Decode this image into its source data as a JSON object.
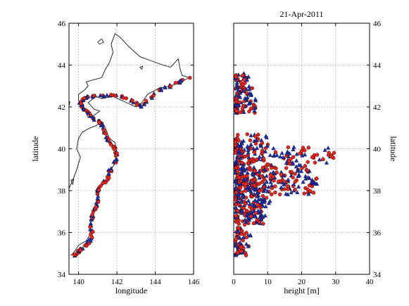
{
  "colors": {
    "red": "#e8251f",
    "blue": "#1c2ea8",
    "coast": "#111111",
    "grid": "#9a9a9a"
  },
  "chart_data": [
    {
      "type": "scatter",
      "title": "",
      "xlabel": "longitude",
      "ylabel": "latitude",
      "xlim": [
        139.5,
        146
      ],
      "ylim": [
        34,
        46
      ],
      "xticks": [
        "140",
        "142",
        "144",
        "146"
      ],
      "yticks": [
        "34",
        "36",
        "38",
        "40",
        "42",
        "44",
        "46"
      ],
      "grid": true,
      "coastline": {
        "honshu": [
          [
            139.6,
            34.9
          ],
          [
            139.8,
            35.1
          ],
          [
            140.0,
            35.4
          ],
          [
            140.4,
            35.6
          ],
          [
            140.6,
            35.9
          ],
          [
            140.6,
            36.3
          ],
          [
            140.7,
            36.8
          ],
          [
            140.9,
            37.3
          ],
          [
            141.0,
            37.7
          ],
          [
            141.0,
            38.1
          ],
          [
            141.3,
            38.3
          ],
          [
            141.5,
            38.5
          ],
          [
            141.6,
            38.9
          ],
          [
            141.9,
            39.3
          ],
          [
            142.0,
            39.8
          ],
          [
            141.9,
            40.3
          ],
          [
            141.6,
            40.5
          ],
          [
            141.4,
            41.0
          ],
          [
            141.2,
            41.3
          ],
          [
            140.9,
            41.1
          ],
          [
            140.6,
            41.0
          ],
          [
            140.2,
            40.8
          ],
          [
            140.0,
            40.5
          ],
          [
            139.9,
            40.0
          ],
          [
            140.1,
            39.6
          ],
          [
            139.9,
            39.0
          ],
          [
            139.7,
            38.5
          ],
          [
            139.5,
            38.1
          ]
        ],
        "hokkaido": [
          [
            140.5,
            41.5
          ],
          [
            140.4,
            41.7
          ],
          [
            140.2,
            42.0
          ],
          [
            140.0,
            42.3
          ],
          [
            140.0,
            42.6
          ],
          [
            140.3,
            42.8
          ],
          [
            140.5,
            43.0
          ],
          [
            140.4,
            43.2
          ],
          [
            140.8,
            43.3
          ],
          [
            141.2,
            43.4
          ],
          [
            141.4,
            43.8
          ],
          [
            141.6,
            44.1
          ],
          [
            141.8,
            44.6
          ],
          [
            141.7,
            45.0
          ],
          [
            141.9,
            45.5
          ],
          [
            142.2,
            45.3
          ],
          [
            142.6,
            44.9
          ],
          [
            143.2,
            44.4
          ],
          [
            143.8,
            44.2
          ],
          [
            144.4,
            44.0
          ],
          [
            144.8,
            43.9
          ],
          [
            145.2,
            44.3
          ],
          [
            145.3,
            43.8
          ],
          [
            145.4,
            43.5
          ],
          [
            145.8,
            43.4
          ],
          [
            145.3,
            43.2
          ],
          [
            144.8,
            43.0
          ],
          [
            144.2,
            42.9
          ],
          [
            143.6,
            42.6
          ],
          [
            143.3,
            42.2
          ],
          [
            143.0,
            42.0
          ],
          [
            142.5,
            42.2
          ],
          [
            141.8,
            42.5
          ],
          [
            141.2,
            42.4
          ],
          [
            140.9,
            42.5
          ],
          [
            140.5,
            42.2
          ],
          [
            140.8,
            41.9
          ],
          [
            141.1,
            41.8
          ],
          [
            140.8,
            41.6
          ],
          [
            140.5,
            41.5
          ]
        ],
        "islands": [
          [
            [
              139.45,
              42.2
            ],
            [
              139.55,
              42.25
            ],
            [
              139.5,
              42.05
            ],
            [
              139.45,
              42.2
            ]
          ],
          [
            [
              139.6,
              38.5
            ],
            [
              139.75,
              38.55
            ],
            [
              139.7,
              38.3
            ],
            [
              139.6,
              38.5
            ]
          ],
          [
            [
              141.0,
              45.1
            ],
            [
              141.2,
              45.25
            ],
            [
              141.3,
              45.1
            ],
            [
              141.1,
              45.0
            ],
            [
              141.0,
              45.1
            ]
          ],
          [
            [
              143.2,
              43.9
            ],
            [
              143.35,
              43.95
            ],
            [
              143.3,
              43.8
            ],
            [
              143.2,
              43.9
            ]
          ]
        ]
      }
    },
    {
      "type": "scatter",
      "title": "21-Apr-2011",
      "xlabel": "height [m]",
      "ylabel": "latitude",
      "xlim": [
        0,
        40
      ],
      "ylim": [
        34,
        46
      ],
      "xticks": [
        "0",
        "10",
        "20",
        "30",
        "40"
      ],
      "yticks": [
        "34",
        "36",
        "38",
        "40",
        "42",
        "44",
        "46"
      ],
      "grid": true
    }
  ]
}
